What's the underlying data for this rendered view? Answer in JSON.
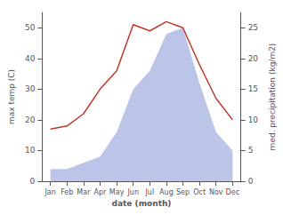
{
  "chart_data": {
    "type": "line",
    "categories": [
      "Jan",
      "Feb",
      "Mar",
      "Apr",
      "May",
      "Jun",
      "Jul",
      "Aug",
      "Sep",
      "Oct",
      "Nov",
      "Dec"
    ],
    "xlabel": "date (month)",
    "ylabel": "max temp (C)",
    "y2label": "med. precipitation (kg/m2)",
    "ylim": [
      0,
      55
    ],
    "yticks": [
      0,
      10,
      20,
      30,
      40,
      50
    ],
    "y2lim": [
      0,
      27.5
    ],
    "y2ticks": [
      0,
      5,
      10,
      15,
      20,
      25
    ],
    "grid": false,
    "series": [
      {
        "type": "area",
        "color": "#bcc5e8",
        "axis": "y2",
        "values": [
          2,
          2,
          3,
          4,
          8,
          15,
          18,
          24,
          25,
          16,
          8,
          5
        ]
      },
      {
        "type": "line",
        "color": "#c0392b",
        "values": [
          17,
          18,
          22,
          30,
          36,
          51,
          49,
          52,
          50,
          38,
          27,
          20
        ]
      }
    ]
  }
}
